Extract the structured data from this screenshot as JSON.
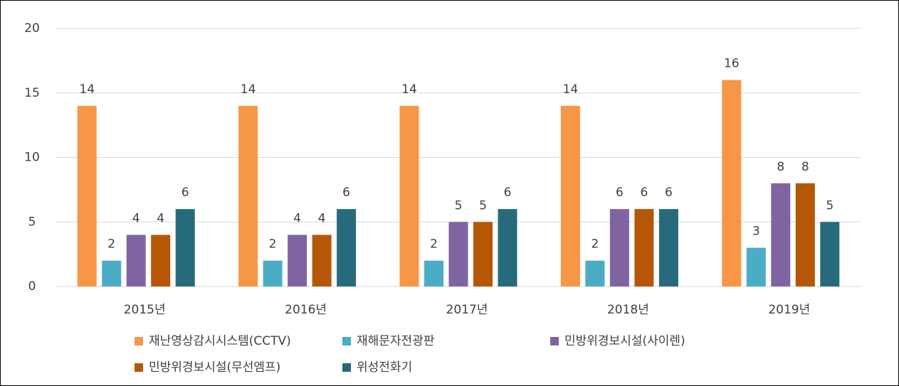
{
  "chart_data": {
    "type": "bar",
    "categories": [
      "2015년",
      "2016년",
      "2017년",
      "2018년",
      "2019년"
    ],
    "series": [
      {
        "name": "재난영상감시시스템(CCTV)",
        "color": "#f79646",
        "values": [
          14,
          14,
          14,
          14,
          16
        ]
      },
      {
        "name": "재해문자전광판",
        "color": "#4bacc6",
        "values": [
          2,
          2,
          2,
          2,
          3
        ]
      },
      {
        "name": "민방위경보시설(사이렌)",
        "color": "#8064a2",
        "values": [
          4,
          4,
          5,
          6,
          8
        ]
      },
      {
        "name": "민방위경보시설(무선엠프)",
        "color": "#b65708",
        "values": [
          4,
          4,
          5,
          6,
          8
        ]
      },
      {
        "name": "위성전화기",
        "color": "#276a7c",
        "values": [
          6,
          6,
          6,
          6,
          5
        ]
      }
    ],
    "ylim": [
      0,
      20
    ],
    "yticks": [
      0,
      5,
      10,
      15,
      20
    ],
    "grid": true,
    "legend": "bottom"
  }
}
